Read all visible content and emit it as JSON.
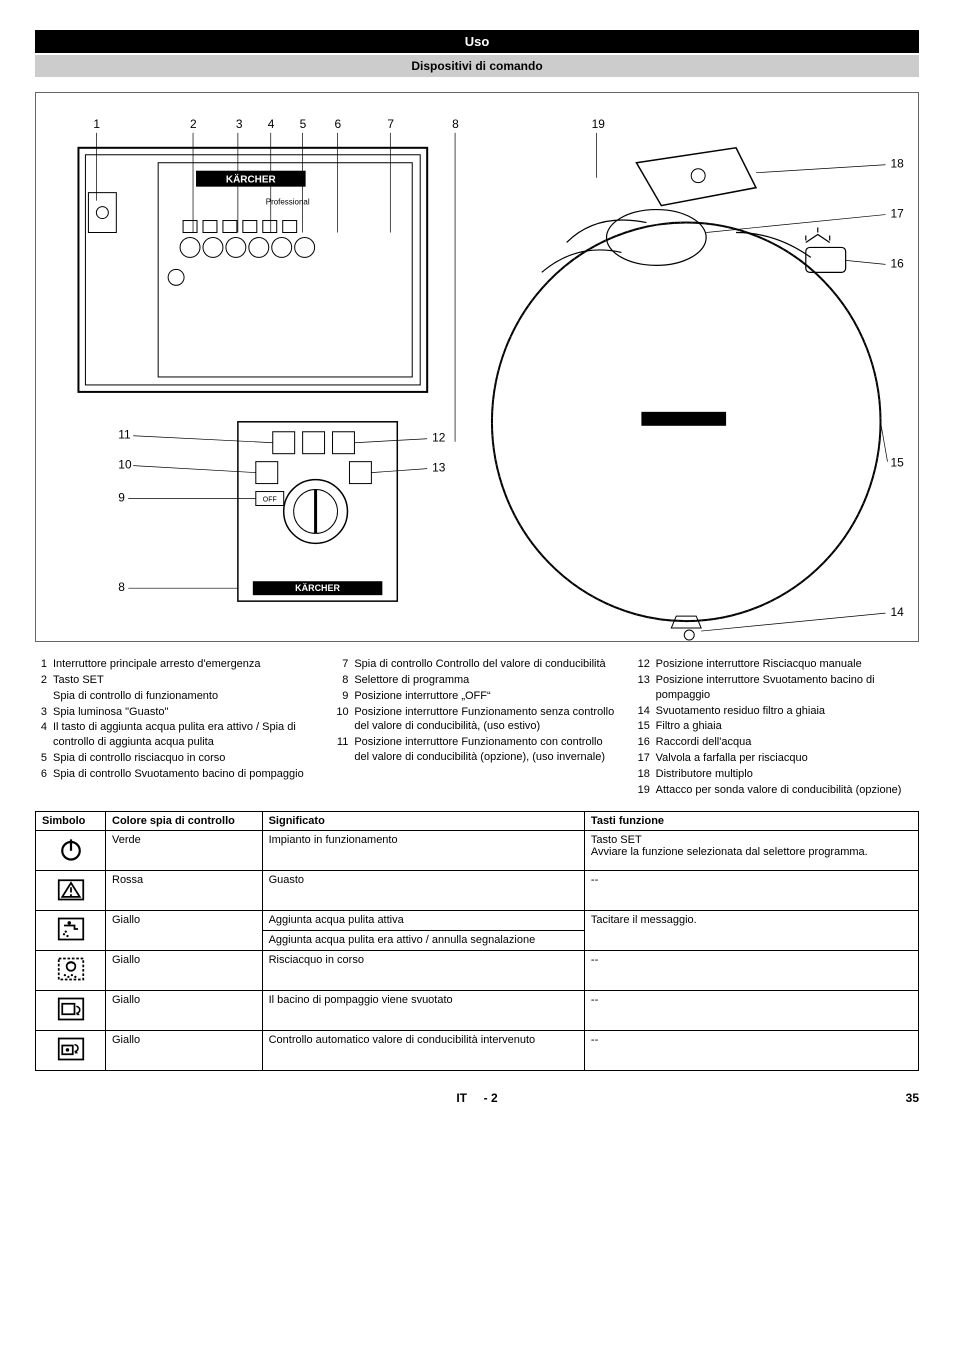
{
  "headers": {
    "section": "Uso",
    "subsection": "Dispositivi di comando"
  },
  "diagram": {
    "callouts_top": [
      "1",
      "2",
      "3",
      "4",
      "5",
      "6",
      "7",
      "8",
      "19"
    ],
    "callouts_left": [
      "11",
      "10",
      "9",
      "8"
    ],
    "callouts_mid": [
      "12",
      "13"
    ],
    "callouts_right": [
      "18",
      "17",
      "16",
      "15",
      "14"
    ],
    "brand1": "KÄRCHER",
    "brand2": "Professional",
    "off_label": "OFF"
  },
  "legend": {
    "col1": [
      {
        "n": "1",
        "t": "Interruttore principale arresto d'emergenza"
      },
      {
        "n": "2",
        "t": "Tasto SET"
      },
      {
        "n": "",
        "t": "Spia di controllo di funzionamento"
      },
      {
        "n": "3",
        "t": "Spia luminosa \"Guasto\""
      },
      {
        "n": "4",
        "t": "Il tasto di aggiunta acqua pulita era attivo / Spia di controllo di aggiunta acqua pulita"
      },
      {
        "n": "5",
        "t": "Spia di controllo risciacquo in corso"
      },
      {
        "n": "6",
        "t": "Spia di controllo Svuotamento bacino di pompaggio"
      }
    ],
    "col2": [
      {
        "n": "7",
        "t": "Spia di controllo Controllo del valore di conducibilità"
      },
      {
        "n": "8",
        "t": "Selettore di programma"
      },
      {
        "n": "9",
        "t": "Posizione interruttore „OFF“"
      },
      {
        "n": "10",
        "t": "Posizione interruttore Funzionamento senza controllo del valore di conducibilità, (uso estivo)"
      },
      {
        "n": "11",
        "t": "Posizione interruttore Funzionamento con controllo del valore di conducibilità (opzione), (uso invernale)"
      }
    ],
    "col3": [
      {
        "n": "12",
        "t": "Posizione interruttore Risciacquo manuale"
      },
      {
        "n": "13",
        "t": "Posizione interruttore Svuotamento bacino di pompaggio"
      },
      {
        "n": "14",
        "t": "Svuotamento residuo filtro a ghiaia"
      },
      {
        "n": "15",
        "t": "Filtro a ghiaia"
      },
      {
        "n": "16",
        "t": "Raccordi dell'acqua"
      },
      {
        "n": "17",
        "t": "Valvola a farfalla per risciacquo"
      },
      {
        "n": "18",
        "t": "Distributore multiplo"
      },
      {
        "n": "19",
        "t": "Attacco per sonda valore di conducibilità (opzione)"
      }
    ]
  },
  "table": {
    "headers": [
      "Simbolo",
      "Colore spia di controllo",
      "Significato",
      "Tasti funzione"
    ],
    "rows": [
      {
        "icon": "power",
        "color": "Verde",
        "meaning": "Impianto in funzionamento",
        "func": "Tasto SET\nAvviare la funzione selezionata dal selettore programma."
      },
      {
        "icon": "warning",
        "color": "Rossa",
        "meaning": "Guasto",
        "func": "--"
      },
      {
        "icon": "faucet",
        "color": "Giallo",
        "meaning": "Aggiunta acqua pulita attiva",
        "meaning2": "Aggiunta acqua pulita era attivo / annulla segnalazione",
        "func": "Tacitare il messaggio."
      },
      {
        "icon": "rinse",
        "color": "Giallo",
        "meaning": "Risciacquo in corso",
        "func": "--"
      },
      {
        "icon": "drain",
        "color": "Giallo",
        "meaning": "Il bacino di pompaggio viene svuotato",
        "func": "--"
      },
      {
        "icon": "conduct",
        "color": "Giallo",
        "meaning": "Controllo automatico valore di conducibilità intervenuto",
        "func": "--"
      }
    ]
  },
  "footer": {
    "lang": "IT",
    "sep": "-",
    "page_local": "2",
    "page_global": "35"
  }
}
